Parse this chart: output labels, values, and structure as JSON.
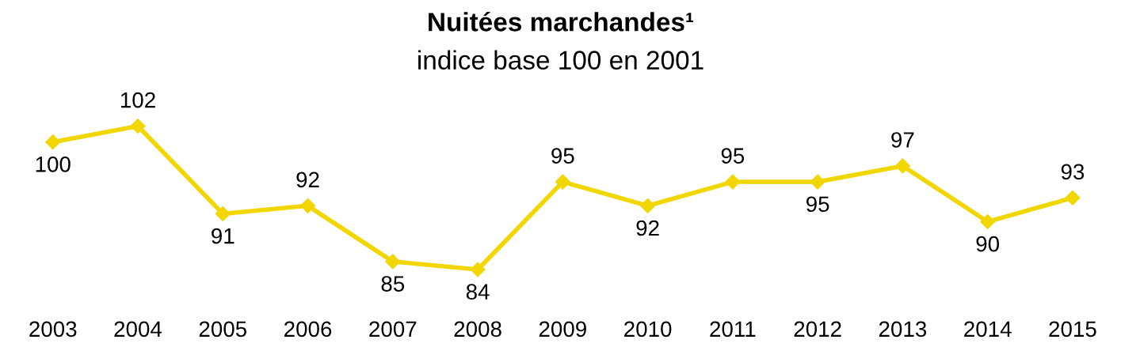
{
  "chart_data": {
    "type": "line",
    "title": "Nuitées marchandes¹",
    "subtitle": "indice base 100 en 2001",
    "categories": [
      "2003",
      "2004",
      "2005",
      "2006",
      "2007",
      "2008",
      "2009",
      "2010",
      "2011",
      "2012",
      "2013",
      "2014",
      "2015"
    ],
    "series": [
      {
        "color": "#f2d600",
        "values": [
          100,
          102,
          91,
          92,
          85,
          84,
          95,
          92,
          95,
          95,
          97,
          90,
          93
        ]
      }
    ],
    "data_labels": true,
    "marker": "diamond",
    "line_style": "solid",
    "grid": false,
    "legend": false,
    "tick_labels": "x"
  }
}
